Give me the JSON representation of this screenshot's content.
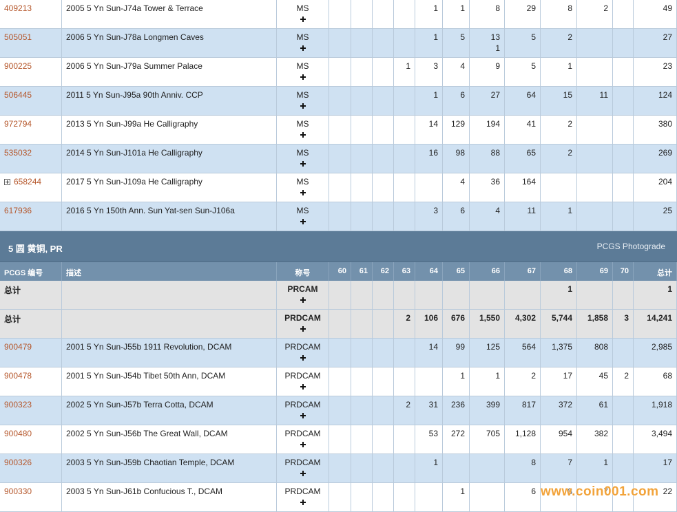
{
  "sections": [
    {
      "rows": [
        {
          "code": "409213",
          "description": "2005 5 Yn Sun-J74a Tower & Terrace",
          "designation": "MS",
          "grades": [
            null,
            null,
            null,
            null,
            "1",
            "1",
            "8",
            "29",
            "8",
            "2",
            null
          ],
          "total": "49"
        },
        {
          "code": "505051",
          "description": "2006 5 Yn Sun-J78a Longmen Caves",
          "designation": "MS",
          "grades": [
            null,
            null,
            null,
            null,
            "1",
            "5",
            [
              "13",
              "1"
            ],
            "5",
            "2",
            null,
            null
          ],
          "total": "27"
        },
        {
          "code": "900225",
          "description": "2006 5 Yn Sun-J79a Summer Palace",
          "designation": "MS",
          "grades": [
            null,
            null,
            null,
            "1",
            "3",
            "4",
            "9",
            "5",
            "1",
            null,
            null
          ],
          "total": "23"
        },
        {
          "code": "506445",
          "description": "2011 5 Yn Sun-J95a 90th Anniv. CCP",
          "designation": "MS",
          "grades": [
            null,
            null,
            null,
            null,
            "1",
            "6",
            "27",
            "64",
            "15",
            "11",
            null
          ],
          "total": "124"
        },
        {
          "code": "972794",
          "description": "2013 5 Yn Sun-J99a He Calligraphy",
          "designation": "MS",
          "grades": [
            null,
            null,
            null,
            null,
            "14",
            "129",
            "194",
            "41",
            "2",
            null,
            null
          ],
          "total": "380"
        },
        {
          "code": "535032",
          "description": "2014 5 Yn Sun-J101a He Calligraphy",
          "designation": "MS",
          "grades": [
            null,
            null,
            null,
            null,
            "16",
            "98",
            "88",
            "65",
            "2",
            null,
            null
          ],
          "total": "269"
        },
        {
          "code": "658244",
          "expandable": true,
          "description": "2017 5 Yn Sun-J109a He Calligraphy",
          "designation": "MS",
          "grades": [
            null,
            null,
            null,
            null,
            null,
            "4",
            "36",
            "164",
            null,
            null,
            null
          ],
          "total": "204"
        },
        {
          "code": "617936",
          "description": "2016 5 Yn 150th Ann. Sun Yat-sen Sun-J106a",
          "designation": "MS",
          "grades": [
            null,
            null,
            null,
            null,
            "3",
            "6",
            "4",
            "11",
            "1",
            null,
            null
          ],
          "total": "25"
        }
      ]
    },
    {
      "title": "5 圆 黄铜, PR",
      "photograde": "PCGS Photograde",
      "columns": [
        "PCGS 编号",
        "描述",
        "称号",
        "60",
        "61",
        "62",
        "63",
        "64",
        "65",
        "66",
        "67",
        "68",
        "69",
        "70",
        "总计"
      ],
      "rows": [
        {
          "code": "总计",
          "designation": "PRCAM",
          "grades": [
            null,
            null,
            null,
            null,
            null,
            null,
            null,
            null,
            "1",
            null,
            null
          ],
          "total": "1"
        },
        {
          "code": "总计",
          "designation": "PRDCAM",
          "grades": [
            null,
            null,
            null,
            "2",
            "106",
            "676",
            "1,550",
            "4,302",
            "5,744",
            "1,858",
            "3"
          ],
          "total": "14,241"
        },
        {
          "code": "900479",
          "description": "2001 5 Yn Sun-J55b 1911 Revolution, DCAM",
          "designation": "PRDCAM",
          "grades": [
            null,
            null,
            null,
            null,
            "14",
            "99",
            "125",
            "564",
            "1,375",
            "808",
            null
          ],
          "total": "2,985"
        },
        {
          "code": "900478",
          "description": "2001 5 Yn Sun-J54b Tibet 50th Ann, DCAM",
          "designation": "PRDCAM",
          "grades": [
            null,
            null,
            null,
            null,
            null,
            "1",
            "1",
            "2",
            "17",
            "45",
            "2"
          ],
          "total": "68"
        },
        {
          "code": "900323",
          "description": "2002 5 Yn Sun-J57b Terra Cotta, DCAM",
          "designation": "PRDCAM",
          "grades": [
            null,
            null,
            null,
            "2",
            "31",
            "236",
            "399",
            "817",
            "372",
            "61",
            null
          ],
          "total": "1,918"
        },
        {
          "code": "900480",
          "description": "2002 5 Yn Sun-J56b The Great Wall, DCAM",
          "designation": "PRDCAM",
          "grades": [
            null,
            null,
            null,
            null,
            "53",
            "272",
            "705",
            "1,128",
            "954",
            "382",
            null
          ],
          "total": "3,494"
        },
        {
          "code": "900326",
          "description": "2003 5 Yn Sun-J59b Chaotian Temple, DCAM",
          "designation": "PRDCAM",
          "grades": [
            null,
            null,
            null,
            null,
            "1",
            null,
            null,
            "8",
            "7",
            "1",
            null
          ],
          "total": "17"
        },
        {
          "code": "900330",
          "description": "2003 5 Yn Sun-J61b Confucious T., DCAM",
          "designation": "PRDCAM",
          "grades": [
            null,
            null,
            null,
            null,
            null,
            "1",
            null,
            "6",
            "8",
            "7",
            null
          ],
          "total": "22"
        }
      ]
    }
  ],
  "watermark": "www.coin001.com"
}
